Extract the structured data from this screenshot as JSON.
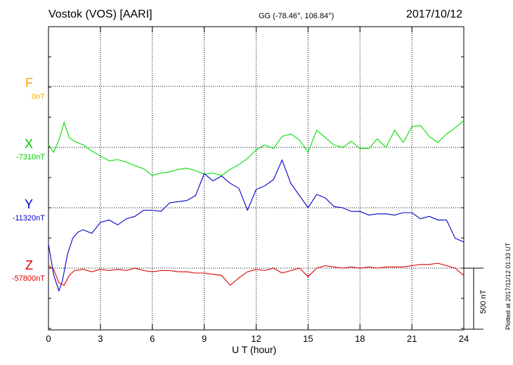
{
  "header": {
    "title": "Vostok (VOS)  [AARI]",
    "coords": "GG (-78.46°, 106.84°)",
    "date": "2017/10/12"
  },
  "plotted_note": "Plotted at 2017/11/12 01:33 UT",
  "scale_label": "500 nT",
  "colors": {
    "F": "#ffa500",
    "X": "#00e000",
    "Y": "#0000cc",
    "Z": "#dd0000",
    "grid": "#000000"
  },
  "chart_data": {
    "type": "line",
    "xlabel": "U T (hour)",
    "xlim": [
      0,
      24
    ],
    "xticks": [
      0,
      3,
      6,
      9,
      12,
      15,
      18,
      21,
      24
    ],
    "scale_bar_nT": 500,
    "series": [
      {
        "name": "F",
        "baseline_label": "0nT",
        "color": "#ffa500",
        "x": [],
        "y": []
      },
      {
        "name": "X",
        "baseline_label": "-7310nT",
        "color": "#00e000",
        "x": [
          0,
          0.3,
          0.6,
          0.9,
          1.2,
          1.5,
          2,
          2.5,
          3,
          3.5,
          4,
          4.5,
          5,
          5.5,
          6,
          6.5,
          7,
          7.5,
          8,
          8.5,
          9,
          9.5,
          10,
          10.5,
          11,
          11.5,
          12,
          12.5,
          13,
          13.5,
          14,
          14.5,
          15,
          15.5,
          16,
          16.5,
          17,
          17.5,
          18,
          18.5,
          19,
          19.5,
          20,
          20.5,
          21,
          21.5,
          22,
          22.5,
          23,
          23.5,
          24
        ],
        "y": [
          20,
          -40,
          60,
          205,
          80,
          50,
          20,
          -30,
          -70,
          -110,
          -100,
          -120,
          -150,
          -175,
          -230,
          -210,
          -200,
          -180,
          -170,
          -190,
          -220,
          -210,
          -230,
          -180,
          -140,
          -90,
          -20,
          20,
          -10,
          90,
          110,
          60,
          -40,
          140,
          80,
          20,
          0,
          50,
          -10,
          -10,
          70,
          0,
          140,
          40,
          170,
          180,
          90,
          40,
          110,
          160,
          220
        ]
      },
      {
        "name": "Y",
        "baseline_label": "-11320nT",
        "color": "#0000cc",
        "x": [
          0,
          0.3,
          0.6,
          0.8,
          1.1,
          1.4,
          1.7,
          2,
          2.5,
          3,
          3.5,
          4,
          4.5,
          5,
          5.5,
          6,
          6.5,
          7,
          7.5,
          8,
          8.5,
          9,
          9.5,
          10,
          10.5,
          11,
          11.5,
          12,
          12.5,
          13,
          13.5,
          14,
          14.5,
          15,
          15.5,
          16,
          16.5,
          17,
          17.5,
          18,
          18.5,
          19,
          19.5,
          20,
          20.5,
          21,
          21.5,
          22,
          22.5,
          23,
          23.5,
          24
        ],
        "y": [
          -300,
          -550,
          -680,
          -600,
          -380,
          -250,
          -200,
          -180,
          -210,
          -120,
          -100,
          -140,
          -90,
          -70,
          -20,
          -20,
          -30,
          40,
          50,
          60,
          100,
          280,
          220,
          260,
          200,
          160,
          -20,
          150,
          180,
          230,
          390,
          200,
          100,
          0,
          110,
          80,
          10,
          0,
          -30,
          -30,
          -60,
          -50,
          -50,
          -60,
          -40,
          -40,
          -90,
          -70,
          -100,
          -100,
          -250,
          -280
        ]
      },
      {
        "name": "Z",
        "baseline_label": "-57800nT",
        "color": "#dd0000",
        "x": [
          0,
          0.3,
          0.6,
          0.9,
          1.2,
          1.5,
          2,
          2.5,
          3,
          3.5,
          4,
          4.5,
          5,
          5.5,
          6,
          6.5,
          7,
          7.5,
          8,
          8.5,
          9,
          9.5,
          10,
          10.5,
          11,
          11.5,
          12,
          12.5,
          13,
          13.5,
          14,
          14.5,
          15,
          15.5,
          16,
          16.5,
          17,
          17.5,
          18,
          18.5,
          19,
          19.5,
          20,
          20.5,
          21,
          21.5,
          22,
          22.5,
          23,
          23.5,
          24
        ],
        "y": [
          20,
          -10,
          -120,
          -140,
          -60,
          -20,
          -10,
          -30,
          -10,
          -20,
          -10,
          -20,
          0,
          -20,
          -30,
          -20,
          -20,
          -30,
          -30,
          -40,
          -40,
          -50,
          -60,
          -140,
          -80,
          -30,
          -10,
          -20,
          0,
          -40,
          -20,
          0,
          -70,
          0,
          20,
          10,
          0,
          10,
          0,
          10,
          0,
          10,
          10,
          10,
          20,
          30,
          30,
          40,
          20,
          0,
          -60
        ]
      }
    ]
  }
}
